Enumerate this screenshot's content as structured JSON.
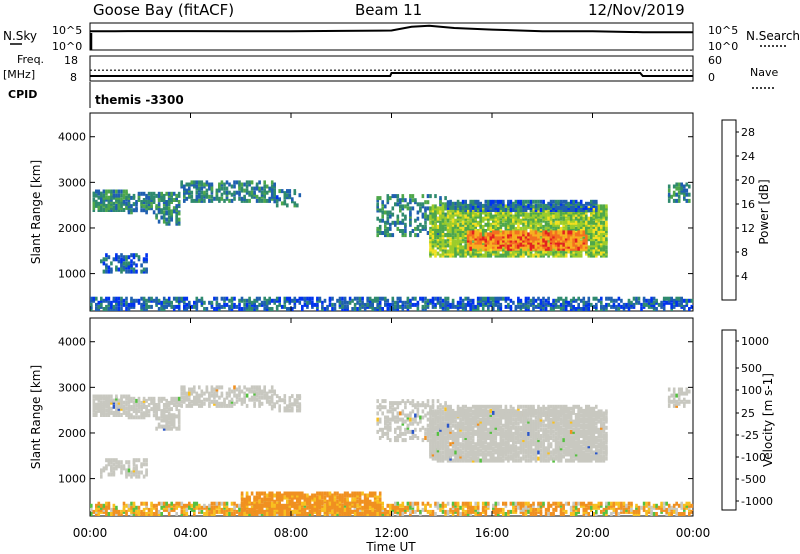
{
  "header": {
    "station": "Goose Bay (fitACF)",
    "beam": "Beam 11",
    "date": "12/Nov/2019"
  },
  "top_strips": {
    "nsky_label": "N.Sky",
    "nsky_ticks": [
      "10^5",
      "10^0"
    ],
    "nsearch_label": "N.Search",
    "nsearch_ticks": [
      "10^5",
      "10^0"
    ],
    "freq_label": "Freq.",
    "freq_unit": "[MHz]",
    "freq_ticks": [
      "18",
      "8"
    ],
    "nave_label": "Nave",
    "nave_ticks": [
      "60",
      "0"
    ],
    "cpid_label": "CPID",
    "cpid_value": "themis -3300"
  },
  "x_axis": {
    "label": "Time UT",
    "ticks": [
      "00:00",
      "04:00",
      "08:00",
      "12:00",
      "16:00",
      "20:00",
      "00:00"
    ]
  },
  "colors": {
    "power_scale": [
      "#0033ee",
      "#1f5fb0",
      "#2f8a6e",
      "#4ea74a",
      "#9ccc2a",
      "#f3e020",
      "#f7b020",
      "#f47020",
      "#e32020"
    ],
    "velocity_scale": [
      "#1a2fa0",
      "#2a55c8",
      "#2f8a5a",
      "#55c040",
      "#c8c8c0",
      "#f8c020",
      "#f09020",
      "#f05a10",
      "#e81010"
    ],
    "ground_scatter": "#c8c8c0"
  },
  "chart_data": [
    {
      "type": "line",
      "title": "N.Sky / N.Search",
      "x": [
        0,
        1,
        2,
        4,
        6,
        8,
        10,
        12,
        12.8,
        13.5,
        14.5,
        16,
        18,
        20,
        22,
        24
      ],
      "series": [
        {
          "name": "N.Sky",
          "values": [
            3000,
            3000,
            3200,
            3100,
            3000,
            3000,
            3500,
            4000,
            20000,
            30000,
            12000,
            6000,
            3000,
            3000,
            2000,
            2000
          ]
        }
      ],
      "ylim": [
        1,
        100000
      ],
      "yscale": "log"
    },
    {
      "type": "line",
      "title": "Freq. / Nave",
      "x": [
        0,
        1,
        2,
        4,
        6,
        8,
        10,
        11.95,
        12,
        14,
        16,
        18,
        20,
        21.9,
        22,
        24
      ],
      "series": [
        {
          "name": "Freq.",
          "values": [
            10,
            10,
            10,
            10,
            10,
            10,
            10,
            10,
            11.2,
            11.2,
            11.2,
            11.2,
            11.2,
            11.2,
            10,
            10
          ]
        },
        {
          "name": "Nave",
          "values": [
            26,
            26,
            26,
            26,
            26,
            26,
            26,
            26,
            26,
            26,
            26,
            26,
            26,
            26,
            26,
            26
          ]
        }
      ],
      "ylim": [
        8,
        18
      ]
    },
    {
      "type": "heatmap",
      "title": "Power [dB]",
      "xlabel": "Time UT",
      "ylabel": "Slant Range [km]",
      "xlim": [
        0,
        24
      ],
      "ylim": [
        180,
        4520
      ],
      "yticks": [
        1000,
        2000,
        3000,
        4000
      ],
      "colorbar": {
        "label": "Power [dB]",
        "ticks": [
          4,
          8,
          12,
          16,
          20,
          24,
          28
        ],
        "range": [
          0,
          30
        ]
      },
      "regions": [
        {
          "t0": 0.1,
          "t1": 1.6,
          "r0": 2350,
          "r1": 2800,
          "level": 9,
          "density": 0.75
        },
        {
          "t0": 1.5,
          "t1": 3.6,
          "r0": 2300,
          "r1": 2750,
          "level": 8,
          "density": 0.55
        },
        {
          "t0": 2.6,
          "t1": 3.6,
          "r0": 2050,
          "r1": 2350,
          "level": 7,
          "density": 0.5
        },
        {
          "t0": 3.6,
          "t1": 7.3,
          "r0": 2550,
          "r1": 3000,
          "level": 8,
          "density": 0.5
        },
        {
          "t0": 7.2,
          "t1": 8.3,
          "r0": 2450,
          "r1": 2800,
          "level": 7,
          "density": 0.35
        },
        {
          "t0": 0.4,
          "t1": 2.3,
          "r0": 1000,
          "r1": 1400,
          "level": 5,
          "density": 0.4
        },
        {
          "t0": 11.4,
          "t1": 14.2,
          "r0": 1800,
          "r1": 2700,
          "level": 8,
          "density": 0.35
        },
        {
          "t0": 13.5,
          "t1": 20.6,
          "r0": 1350,
          "r1": 2450,
          "level": 14,
          "density": 0.8
        },
        {
          "t0": 15.0,
          "t1": 19.8,
          "r0": 1500,
          "r1": 1900,
          "level": 24,
          "density": 0.85
        },
        {
          "t0": 14.2,
          "t1": 20.2,
          "r0": 2350,
          "r1": 2550,
          "level": 6,
          "density": 0.65
        },
        {
          "t0": 23.0,
          "t1": 23.9,
          "r0": 2550,
          "r1": 2950,
          "level": 8,
          "density": 0.45
        },
        {
          "t0": 0.0,
          "t1": 24.0,
          "r0": 180,
          "r1": 450,
          "level": 5,
          "density": 0.55
        }
      ]
    },
    {
      "type": "heatmap",
      "title": "Velocity [m s-1]",
      "xlabel": "Time UT",
      "ylabel": "Slant Range [km]",
      "xlim": [
        0,
        24
      ],
      "ylim": [
        180,
        4520
      ],
      "yticks": [
        1000,
        2000,
        3000,
        4000
      ],
      "colorbar": {
        "label": "Velocity [m s-1]",
        "ticks": [
          1000,
          500,
          100,
          25,
          -25,
          -100,
          -500,
          -1000
        ],
        "range": [
          -1000,
          1000
        ]
      },
      "regions": [
        {
          "t0": 0.1,
          "t1": 1.6,
          "r0": 2350,
          "r1": 2800,
          "value": 0,
          "density": 0.75
        },
        {
          "t0": 1.5,
          "t1": 3.6,
          "r0": 2300,
          "r1": 2750,
          "value": 0,
          "density": 0.55
        },
        {
          "t0": 2.6,
          "t1": 3.6,
          "r0": 2050,
          "r1": 2350,
          "value": 0,
          "density": 0.5
        },
        {
          "t0": 3.6,
          "t1": 7.3,
          "r0": 2550,
          "r1": 3000,
          "value": 0,
          "density": 0.5
        },
        {
          "t0": 7.2,
          "t1": 8.3,
          "r0": 2450,
          "r1": 2800,
          "value": 0,
          "density": 0.35
        },
        {
          "t0": 0.4,
          "t1": 2.3,
          "r0": 1000,
          "r1": 1400,
          "value": 0,
          "density": 0.4
        },
        {
          "t0": 11.4,
          "t1": 14.2,
          "r0": 1800,
          "r1": 2700,
          "value": 0,
          "density": 0.35
        },
        {
          "t0": 13.5,
          "t1": 20.6,
          "r0": 1350,
          "r1": 2450,
          "value": 0,
          "density": 0.8
        },
        {
          "t0": 14.2,
          "t1": 20.2,
          "r0": 2350,
          "r1": 2550,
          "value": 0,
          "density": 0.65
        },
        {
          "t0": 23.0,
          "t1": 23.9,
          "r0": 2550,
          "r1": 2950,
          "value": 0,
          "density": 0.45
        },
        {
          "t0": 0.0,
          "t1": 24.0,
          "r0": 180,
          "r1": 450,
          "value": -80,
          "density": 0.55
        },
        {
          "t0": 6.0,
          "t1": 11.5,
          "r0": 180,
          "r1": 650,
          "value": -200,
          "density": 0.7
        }
      ]
    }
  ]
}
